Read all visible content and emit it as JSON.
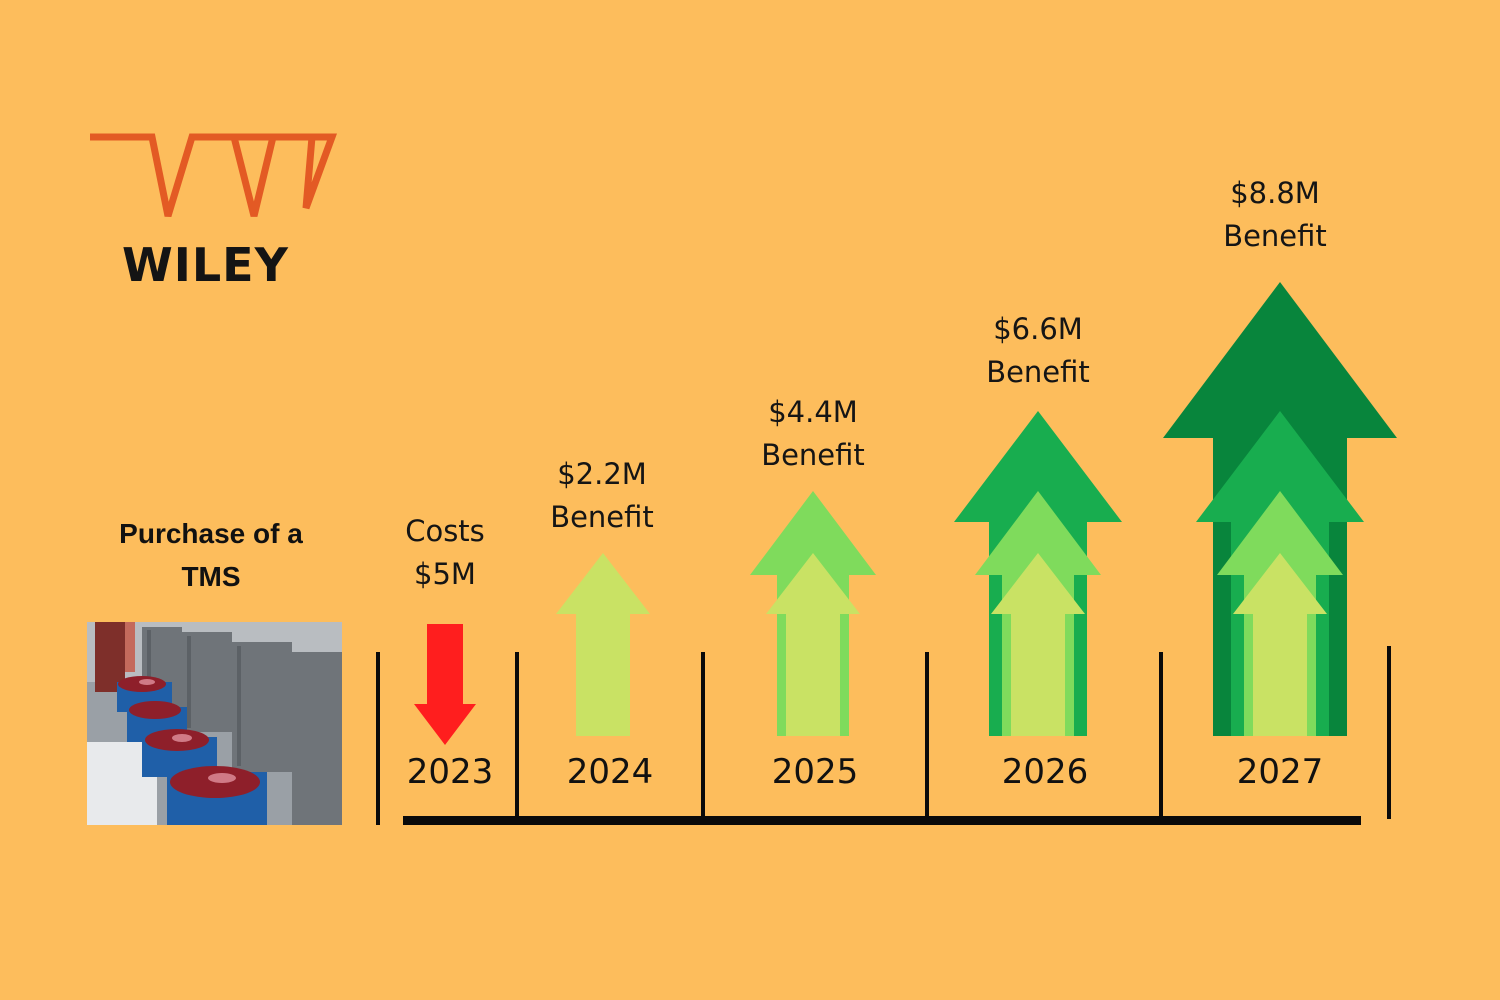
{
  "brand": {
    "name": "WILEY",
    "logo_color": "#E35A24"
  },
  "subject": "Purchase of a TMS",
  "timeline": [
    {
      "year": "2023",
      "kind": "cost",
      "line1": "Costs",
      "line2": "$5M",
      "amount_millions": 5,
      "color": "#FF1E1E"
    },
    {
      "year": "2024",
      "kind": "benefit",
      "line1": "$2.2M",
      "line2": "Benefit",
      "amount_millions": 2.2
    },
    {
      "year": "2025",
      "kind": "benefit",
      "line1": "$4.4M",
      "line2": "Benefit",
      "amount_millions": 4.4
    },
    {
      "year": "2026",
      "kind": "benefit",
      "line1": "$6.6M",
      "line2": "Benefit",
      "amount_millions": 6.6
    },
    {
      "year": "2027",
      "kind": "benefit",
      "line1": "$8.8M",
      "line2": "Benefit",
      "amount_millions": 8.8
    }
  ],
  "colors": {
    "background": "#FDBD5C",
    "benefit_tier_1": "#C9E264",
    "benefit_tier_2": "#7FDB5C",
    "benefit_tier_3": "#18AD4F",
    "benefit_tier_4": "#08853C",
    "cost": "#FF1E1E"
  },
  "photo_icon": "meat-processing-line-photo"
}
